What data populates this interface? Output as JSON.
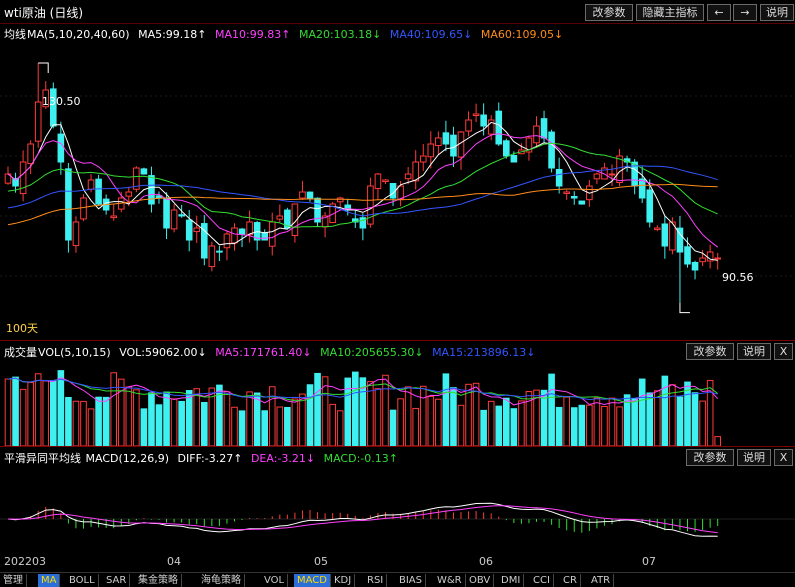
{
  "window": {
    "title": "wti原油 (日线)",
    "buttons": {
      "params": "改参数",
      "hide_indicator": "隐藏主指标",
      "prev": "←",
      "next": "→",
      "help": "说明"
    }
  },
  "main_panel": {
    "legend": {
      "name": "均线",
      "params": "MA(5,10,20,40,60)",
      "ma5": "MA5:99.18↑",
      "ma10": "MA10:99.83↑",
      "ma20": "MA20:103.18↓",
      "ma40": "MA40:109.65↓",
      "ma60": "MA60:109.05↓"
    },
    "high_label": "130.50",
    "low_label": "90.56",
    "days_label": "100天"
  },
  "volume_panel": {
    "legend": {
      "name": "成交量",
      "vol": "VOL(5,10,15)",
      "vol_value": "VOL:59062.00↓",
      "ma5": "MA5:171761.40↓",
      "ma10": "MA10:205655.30↓",
      "ma15": "MA15:213896.13↓"
    },
    "buttons": {
      "params": "改参数",
      "help": "说明",
      "close": "X"
    }
  },
  "macd_panel": {
    "legend": {
      "name": "平滑异同平均线",
      "params": "MACD(12,26,9)",
      "diff": "DIFF:-3.27↑",
      "dea": "DEA:-3.21↓",
      "macd": "MACD:-0.13↑"
    },
    "buttons": {
      "params": "改参数",
      "help": "说明",
      "close": "X"
    }
  },
  "axis": {
    "labels": [
      "202203",
      "04",
      "05",
      "06",
      "07"
    ]
  },
  "tabs": [
    "管理",
    "MA",
    "BOLL",
    "SAR",
    "集金策略",
    "海龟策略",
    "VOL",
    "MACD",
    "KDJ",
    "RSI",
    "BIAS",
    "W&R",
    "OBV",
    "DMI",
    "CCI",
    "CR",
    "ATR"
  ],
  "colors": {
    "up": "#ff3a3a",
    "down": "#3ff0f0",
    "ma5": "#ffffff",
    "ma10": "#ff40ff",
    "ma20": "#33dd33",
    "ma40": "#3355ff",
    "ma60": "#ff8c1a"
  },
  "chart_data": {
    "type": "candlestick",
    "price_range": [
      88,
      133
    ],
    "highest": 130.5,
    "lowest": 90.56,
    "closes": [
      112,
      110,
      114,
      117,
      124,
      126,
      120,
      114,
      101,
      104,
      108,
      111,
      107,
      106,
      105,
      108,
      109,
      113,
      112,
      107,
      108,
      103,
      106,
      105,
      101,
      103,
      98,
      100,
      99,
      102,
      103,
      102,
      104,
      101,
      101,
      104,
      105,
      103,
      107,
      109,
      108,
      104,
      105,
      107,
      108,
      106,
      104,
      103,
      110,
      112,
      111,
      108,
      110,
      112,
      114,
      115,
      117,
      118,
      117,
      115,
      119,
      121,
      122,
      120,
      121,
      117,
      115,
      114,
      116,
      118,
      120,
      118,
      113,
      110,
      109,
      108,
      107,
      110,
      112,
      113,
      112,
      115,
      114,
      110,
      108,
      104,
      103,
      100,
      104,
      99,
      97,
      96,
      98,
      99,
      98
    ]
  }
}
